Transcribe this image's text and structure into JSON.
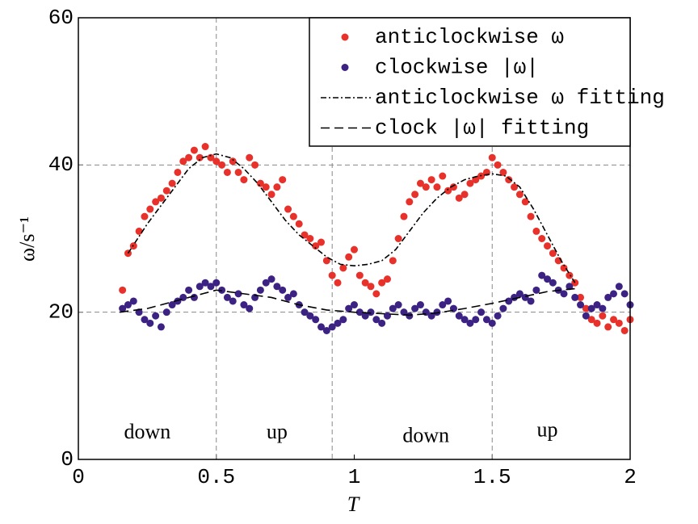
{
  "chart_data": {
    "type": "scatter",
    "xlabel": "T",
    "ylabel": "ω/s⁻¹",
    "xlim": [
      0,
      2
    ],
    "xticks": [
      0,
      0.5,
      1,
      1.5,
      2
    ],
    "ylim": [
      0,
      60
    ],
    "yticks": [
      0,
      20,
      40,
      60
    ],
    "grid": "y",
    "vlines": [
      0.5,
      0.92,
      1.5
    ],
    "legend": "upper right",
    "annotations": [
      {
        "text": "down",
        "x": 0.25,
        "y": 3.5
      },
      {
        "text": "up",
        "x": 0.72,
        "y": 3.5
      },
      {
        "text": "down",
        "x": 1.26,
        "y": 3
      },
      {
        "text": "up",
        "x": 1.7,
        "y": 3.8
      }
    ],
    "x": [
      0.16,
      0.18,
      0.2,
      0.22,
      0.24,
      0.26,
      0.28,
      0.3,
      0.32,
      0.34,
      0.36,
      0.38,
      0.4,
      0.42,
      0.44,
      0.46,
      0.48,
      0.5,
      0.52,
      0.54,
      0.56,
      0.58,
      0.6,
      0.62,
      0.64,
      0.66,
      0.68,
      0.7,
      0.72,
      0.74,
      0.76,
      0.78,
      0.8,
      0.82,
      0.84,
      0.86,
      0.88,
      0.9,
      0.92,
      0.94,
      0.96,
      0.98,
      1.0,
      1.02,
      1.04,
      1.06,
      1.08,
      1.1,
      1.12,
      1.14,
      1.16,
      1.18,
      1.2,
      1.22,
      1.24,
      1.26,
      1.28,
      1.3,
      1.32,
      1.34,
      1.36,
      1.38,
      1.4,
      1.42,
      1.44,
      1.46,
      1.48,
      1.5,
      1.52,
      1.54,
      1.56,
      1.58,
      1.6,
      1.62,
      1.64,
      1.66,
      1.68,
      1.7,
      1.72,
      1.74,
      1.76,
      1.78,
      1.8,
      1.82,
      1.84,
      1.86,
      1.88,
      1.9,
      1.92,
      1.94,
      1.96,
      1.98,
      2.0
    ],
    "series": [
      {
        "name": "anticlockwise ω",
        "kind": "points",
        "color": "#e8312a",
        "values": [
          23,
          28,
          29,
          31,
          33,
          34,
          35,
          35.5,
          36.5,
          37.5,
          39,
          40.5,
          41,
          42,
          41,
          42.5,
          41,
          40.5,
          40,
          39,
          40.5,
          39,
          38,
          41,
          40,
          37.5,
          37,
          36,
          37,
          38,
          34,
          33,
          32,
          30.5,
          30,
          29,
          29.5,
          27,
          25,
          24,
          26,
          27.5,
          28.5,
          25,
          24,
          23.5,
          22.5,
          24,
          24.5,
          27,
          30,
          33,
          35,
          36,
          37.5,
          37,
          38,
          37,
          38.5,
          36.5,
          37,
          35.5,
          36,
          37.5,
          38,
          38.5,
          39,
          41,
          40,
          39,
          38,
          37,
          36,
          35,
          33,
          31,
          30,
          29,
          28,
          27,
          26,
          25,
          24,
          22,
          20.5,
          19,
          18.5,
          19.5,
          18,
          19,
          18.5,
          17.5,
          19
        ]
      },
      {
        "name": "clockwise |ω|",
        "kind": "points",
        "color": "#3b2283",
        "values": [
          20.5,
          21,
          21.5,
          20,
          19,
          18.5,
          19.5,
          18,
          20,
          21,
          21.5,
          22,
          23,
          22,
          23.5,
          24,
          23.5,
          24,
          23,
          22,
          21.5,
          22.5,
          21,
          20.5,
          22,
          23,
          24,
          24.5,
          23.5,
          23,
          22,
          22.5,
          21,
          20,
          19.5,
          19,
          18,
          17.5,
          18,
          18.5,
          19,
          20.5,
          21,
          20,
          19.5,
          20,
          19,
          18.5,
          19.5,
          20.5,
          21,
          20,
          19.5,
          20.5,
          21,
          20,
          19.5,
          20,
          21,
          21.5,
          20.5,
          19.5,
          19,
          18.5,
          19,
          20,
          19,
          18.5,
          19.5,
          20.5,
          21.5,
          22,
          22.5,
          22,
          21.5,
          23,
          25,
          24.5,
          24,
          23,
          22.5,
          23.5,
          22,
          21,
          19.5,
          20.5,
          21,
          20.5,
          22,
          22.5,
          23.5,
          22.5,
          21
        ]
      },
      {
        "name": "anticlockwise ω fitting",
        "kind": "line",
        "linestyle": "dashdot",
        "color": "#000000",
        "x": [
          0.18,
          0.25,
          0.3,
          0.35,
          0.4,
          0.45,
          0.5,
          0.55,
          0.6,
          0.65,
          0.7,
          0.75,
          0.8,
          0.85,
          0.9,
          0.95,
          1.0,
          1.05,
          1.1,
          1.15,
          1.2,
          1.25,
          1.3,
          1.35,
          1.4,
          1.45,
          1.5,
          1.55,
          1.6,
          1.65,
          1.7,
          1.75,
          1.8
        ],
        "values": [
          28,
          32,
          34.5,
          37,
          39.5,
          41,
          41.5,
          41,
          39.5,
          37.5,
          35,
          32.5,
          30.5,
          29,
          27.5,
          26.5,
          26.3,
          26.5,
          27,
          28.5,
          31,
          33.5,
          35.5,
          37,
          38,
          38.5,
          38.8,
          38.5,
          37,
          34,
          30.5,
          27,
          24
        ]
      },
      {
        "name": "clock |ω| fitting",
        "kind": "line",
        "linestyle": "dashed",
        "color": "#000000",
        "x": [
          0.15,
          0.25,
          0.35,
          0.45,
          0.5,
          0.6,
          0.7,
          0.8,
          0.9,
          1.0,
          1.1,
          1.2,
          1.3,
          1.4,
          1.5,
          1.6,
          1.7,
          1.8
        ],
        "values": [
          20,
          20.5,
          21.5,
          22.5,
          23,
          22.5,
          22,
          21,
          20.3,
          20,
          19.8,
          19.6,
          19.9,
          20.5,
          21.2,
          22,
          22.8,
          23.2
        ]
      }
    ]
  }
}
